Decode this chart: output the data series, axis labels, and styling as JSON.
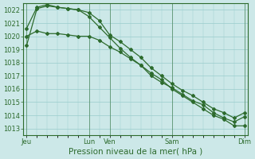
{
  "title": "",
  "xlabel": "Pression niveau de la mer( hPa )",
  "ylabel": "",
  "ylim": [
    1012.5,
    1022.5
  ],
  "yticks": [
    1013,
    1014,
    1015,
    1016,
    1017,
    1018,
    1019,
    1020,
    1021,
    1022
  ],
  "background_color": "#cce8e8",
  "grid_color": "#99cccc",
  "line_color": "#2d6b2d",
  "xtick_labels": [
    "Jeu",
    "Lun",
    "Ven",
    "Sam",
    "Dim"
  ],
  "xtick_positions": [
    0,
    6,
    8,
    14,
    21
  ],
  "line1_x": [
    0,
    1,
    2,
    3,
    4,
    5,
    6,
    7,
    8,
    9,
    10,
    11,
    12,
    13,
    14,
    15,
    16,
    17,
    18,
    19,
    20,
    21
  ],
  "line1_y": [
    1019.3,
    1022.1,
    1022.3,
    1022.2,
    1022.1,
    1022.0,
    1021.8,
    1021.2,
    1020.1,
    1019.6,
    1019.0,
    1018.4,
    1017.6,
    1017.0,
    1016.4,
    1015.9,
    1015.5,
    1015.0,
    1014.5,
    1014.2,
    1013.8,
    1014.2
  ],
  "line2_x": [
    0,
    1,
    2,
    3,
    4,
    5,
    6,
    7,
    8,
    9,
    10,
    11,
    12,
    13,
    14,
    15,
    16,
    17,
    18,
    19,
    20,
    21
  ],
  "line2_y": [
    1020.6,
    1022.2,
    1022.4,
    1022.2,
    1022.1,
    1022.0,
    1021.5,
    1020.7,
    1019.9,
    1019.1,
    1018.4,
    1017.8,
    1017.0,
    1016.5,
    1016.1,
    1015.6,
    1015.1,
    1014.8,
    1014.2,
    1013.8,
    1013.5,
    1013.9
  ],
  "line3_x": [
    0,
    1,
    2,
    3,
    4,
    5,
    6,
    7,
    8,
    9,
    10,
    11,
    12,
    13,
    14,
    15,
    16,
    17,
    18,
    19,
    20,
    21
  ],
  "line3_y": [
    1020.0,
    1020.4,
    1020.2,
    1020.2,
    1020.1,
    1020.0,
    1020.0,
    1019.7,
    1019.2,
    1018.8,
    1018.3,
    1017.8,
    1017.2,
    1016.7,
    1016.0,
    1015.5,
    1015.0,
    1014.5,
    1014.0,
    1013.7,
    1013.2,
    1013.2
  ],
  "marker": "D",
  "markersize": 2.0,
  "linewidth": 0.9,
  "xlabel_fontsize": 7.5,
  "tick_fontsize": 6.0
}
